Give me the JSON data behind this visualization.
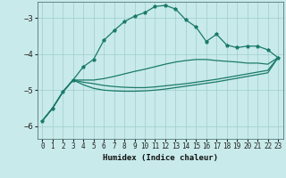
{
  "xlabel": "Humidex (Indice chaleur)",
  "bg_color": "#c8eaea",
  "grid_color": "#a0cccc",
  "line_color": "#1a7a6a",
  "xlim": [
    -0.5,
    23.5
  ],
  "ylim": [
    -6.35,
    -2.55
  ],
  "yticks": [
    -6,
    -5,
    -4,
    -3
  ],
  "xticks": [
    0,
    1,
    2,
    3,
    4,
    5,
    6,
    7,
    8,
    9,
    10,
    11,
    12,
    13,
    14,
    15,
    16,
    17,
    18,
    19,
    20,
    21,
    22,
    23
  ],
  "line1_x": [
    0,
    1,
    2,
    3,
    4,
    5,
    6,
    7,
    8,
    9,
    10,
    11,
    12,
    13,
    14,
    15,
    16,
    17,
    18,
    19,
    20,
    21,
    22,
    23
  ],
  "line1_y": [
    -5.85,
    -5.5,
    -5.05,
    -4.72,
    -4.35,
    -4.15,
    -3.62,
    -3.35,
    -3.1,
    -2.95,
    -2.85,
    -2.68,
    -2.65,
    -2.75,
    -3.05,
    -3.25,
    -3.65,
    -3.45,
    -3.75,
    -3.82,
    -3.78,
    -3.78,
    -3.88,
    -4.1
  ],
  "line2_x": [
    0,
    1,
    2,
    3,
    4,
    5,
    6,
    7,
    8,
    9,
    10,
    11,
    12,
    13,
    14,
    15,
    16,
    17,
    18,
    19,
    20,
    21,
    22,
    23
  ],
  "line2_y": [
    -5.85,
    -5.5,
    -5.05,
    -4.72,
    -4.72,
    -4.72,
    -4.68,
    -4.62,
    -4.55,
    -4.48,
    -4.42,
    -4.35,
    -4.28,
    -4.22,
    -4.18,
    -4.15,
    -4.15,
    -4.18,
    -4.2,
    -4.22,
    -4.25,
    -4.25,
    -4.28,
    -4.1
  ],
  "line3_x": [
    0,
    1,
    2,
    3,
    4,
    5,
    6,
    7,
    8,
    9,
    10,
    11,
    12,
    13,
    14,
    15,
    16,
    17,
    18,
    19,
    20,
    21,
    22,
    23
  ],
  "line3_y": [
    -5.85,
    -5.5,
    -5.05,
    -4.72,
    -4.78,
    -4.82,
    -4.87,
    -4.9,
    -4.92,
    -4.93,
    -4.93,
    -4.91,
    -4.88,
    -4.85,
    -4.82,
    -4.78,
    -4.74,
    -4.7,
    -4.65,
    -4.6,
    -4.55,
    -4.5,
    -4.45,
    -4.1
  ],
  "line4_x": [
    0,
    1,
    2,
    3,
    4,
    5,
    6,
    7,
    8,
    9,
    10,
    11,
    12,
    13,
    14,
    15,
    16,
    17,
    18,
    19,
    20,
    21,
    22,
    23
  ],
  "line4_y": [
    -5.85,
    -5.5,
    -5.05,
    -4.72,
    -4.85,
    -4.95,
    -5.0,
    -5.02,
    -5.03,
    -5.03,
    -5.02,
    -5.0,
    -4.97,
    -4.93,
    -4.89,
    -4.85,
    -4.81,
    -4.77,
    -4.72,
    -4.67,
    -4.62,
    -4.57,
    -4.52,
    -4.1
  ]
}
